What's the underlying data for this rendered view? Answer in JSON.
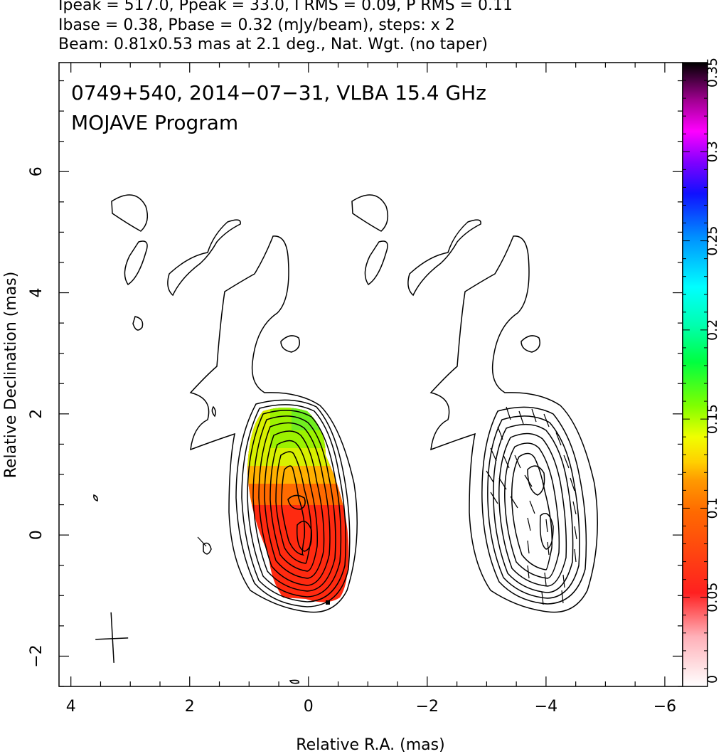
{
  "header": {
    "line1": "Ipeak = 517.0, Ppeak = 33.0, I RMS = 0.09, P RMS = 0.11",
    "line2": "Ibase = 0.38, Pbase = 0.32 (mJy/beam), steps: x 2",
    "line3": "Beam: 0.81x0.53 mas at 2.1 deg., Nat. Wgt. (no taper)"
  },
  "chart_data": {
    "type": "heatmap",
    "title": "0749+540, 2014−07−31, VLBA 15.4 GHz",
    "subtitle": "MOJAVE Program",
    "xlabel": "Relative R.A. (mas)",
    "ylabel": "Relative Declination (mas)",
    "xlim": [
      4.2,
      -6.3
    ],
    "ylim": [
      -2.5,
      7.8
    ],
    "x_ticks": [
      4,
      2,
      0,
      -2,
      -4,
      -6
    ],
    "x_tick_labels": [
      "4",
      "2",
      "0",
      "−2",
      "−4",
      "−6"
    ],
    "y_ticks": [
      -2,
      0,
      2,
      4,
      6
    ],
    "y_tick_labels": [
      "−2",
      "0",
      "2",
      "4",
      "6"
    ],
    "colorbar": {
      "range": [
        0,
        0.35
      ],
      "ticks": [
        0,
        0.05,
        0.1,
        0.15,
        0.2,
        0.25,
        0.3,
        0.35
      ],
      "tick_labels": [
        "0",
        "0.05",
        "0.1",
        "0.15",
        "0.2",
        "0.25",
        "0.3",
        "0.35"
      ]
    },
    "core_position": [
      0,
      0
    ],
    "second_panel_core_position": [
      -4,
      0
    ],
    "beam_center": [
      3.3,
      -1.7
    ],
    "fractional_polarization_regions": [
      {
        "region": "core",
        "ra_range": [
          -0.7,
          0.7
        ],
        "dec_range": [
          -1.1,
          0.5
        ],
        "value": 0.05
      },
      {
        "region": "transition",
        "ra_range": [
          -0.6,
          0.8
        ],
        "dec_range": [
          0.5,
          0.9
        ],
        "value": 0.09
      },
      {
        "region": "jet",
        "ra_range": [
          -0.4,
          0.9
        ],
        "dec_range": [
          0.9,
          2.1
        ],
        "value": 0.15
      }
    ]
  }
}
